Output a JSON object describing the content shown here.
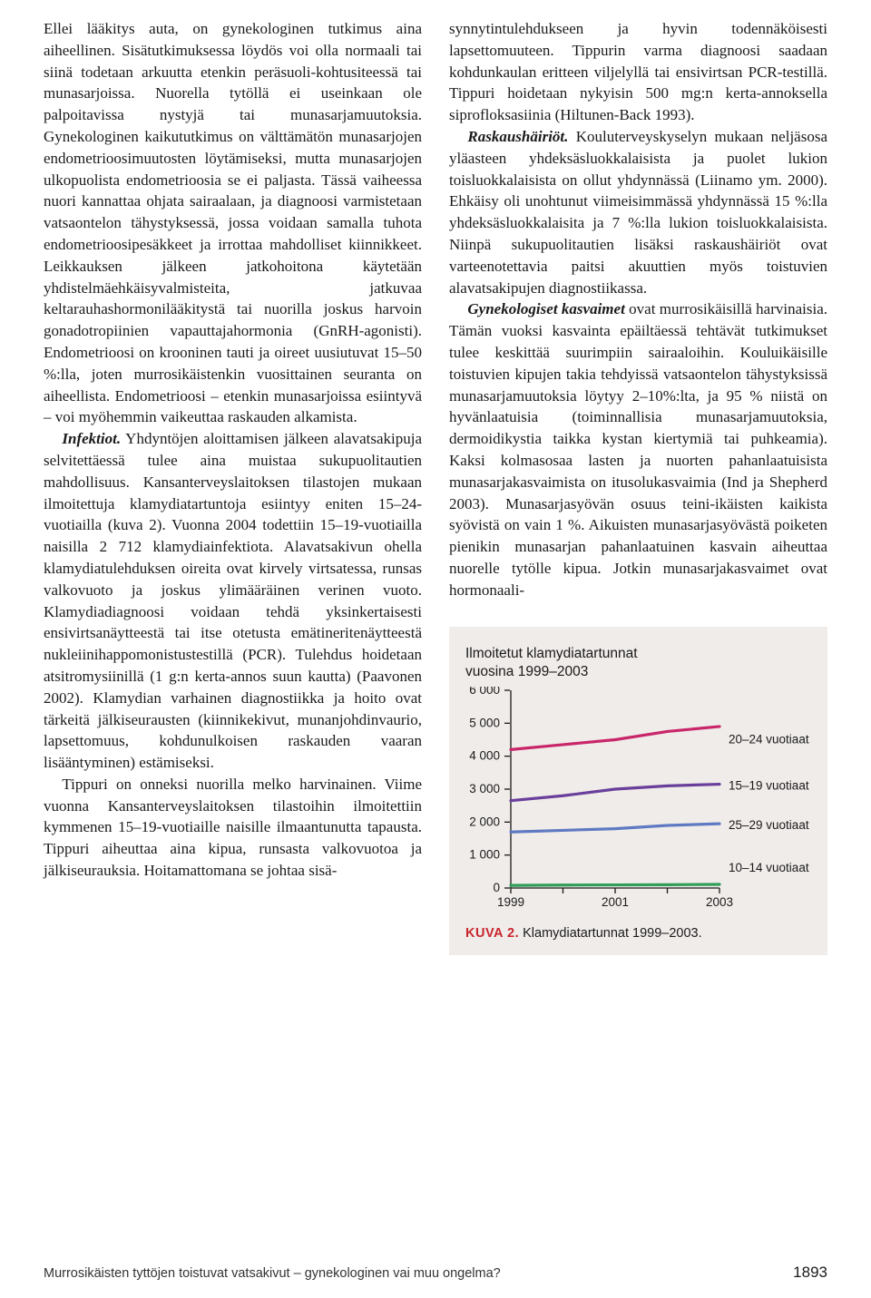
{
  "leftColumn": {
    "p1": "Ellei lääkitys auta, on gynekologinen tutkimus aina aiheellinen. Sisätutkimuksessa löydös voi olla normaali tai siinä todetaan arkuutta etenkin peräsuoli-kohtusiteessä tai munasarjoissa. Nuorella tytöllä ei useinkaan ole palpoitavissa nystyjä tai munasarjamuutoksia. Gynekologinen kaikututkimus on välttämätön munasarjojen endometrioosimuutosten löytämiseksi, mutta munasarjojen ulkopuolista endometrioosia se ei paljasta. Tässä vaiheessa nuori kannattaa ohjata sairaalaan, ja diagnoosi varmistetaan vatsaontelon tähystyksessä, jossa voidaan samalla tuhota endometrioosipesäkkeet ja irrottaa mahdolliset kiinnikkeet. Leikkauksen jälkeen jatkohoitona käytetään yhdistelmäehkäisyvalmisteita, jatkuvaa keltarauhashormonilääkitystä tai nuorilla joskus harvoin gonadotropiinien vapauttajahormonia (GnRH-agonisti). Endometrioosi on krooninen tauti ja oireet uusiutuvat 15–50 %:lla, joten murrosikäistenkin vuosittainen seuranta on aiheellista. Endometrioosi – etenkin munasarjoissa esiintyvä – voi myöhemmin vaikeuttaa raskauden alkamista.",
    "p2_lead": "Infektiot.",
    "p2_body": " Yhdyntöjen aloittamisen jälkeen alavatsakipuja selvitettäessä tulee aina muistaa sukupuolitautien mahdollisuus. Kansanterveyslaitoksen tilastojen mukaan ilmoitettuja klamydiatartuntoja esiintyy eniten 15–24-vuotiailla (kuva 2). Vuonna 2004 todettiin 15–19-vuotiailla naisilla 2 712 klamydiainfektiota. Alavatsakivun ohella klamydiatulehduksen oireita ovat kirvely virtsatessa, runsas valkovuoto ja joskus ylimääräinen verinen vuoto. Klamydiadiagnoosi voidaan tehdä yksinkertaisesti ensivirtsanäytteestä tai itse otetusta emätineritenäytteestä nukleiinihappomonistustestillä (PCR). Tulehdus hoidetaan atsitromysiinillä (1 g:n kerta-annos suun kautta) (Paavonen 2002). Klamydian varhainen diagnostiikka ja hoito ovat tärkeitä jälkiseurausten (kiinnikekivut, munanjohdinvaurio, lapsettomuus, kohdunulkoisen raskauden vaaran lisääntyminen) estämiseksi.",
    "p3": "Tippuri on onneksi nuorilla melko harvinainen. Viime vuonna Kansanterveyslaitoksen tilastoihin ilmoitettiin kymmenen 15–19-vuotiaille naisille ilmaantunutta tapausta. Tippuri aiheuttaa aina kipua, runsasta valkovuotoa ja jälkiseurauksia. Hoitamattomana se johtaa sisä-"
  },
  "rightColumn": {
    "p1": "synnytintulehdukseen ja hyvin todennäköisesti lapsettomuuteen. Tippurin varma diagnoosi saadaan kohdunkaulan eritteen viljelyllä tai ensivirtsan PCR-testillä. Tippuri hoidetaan nykyisin 500 mg:n kerta-annoksella siprofloksasiinia (Hiltunen-Back 1993).",
    "p2_lead": "Raskaushäiriöt.",
    "p2_body": " Kouluterveyskyselyn mukaan neljäsosa yläasteen yhdeksäsluokkalaisista ja puolet lukion toisluokkalaisista on ollut yhdynnässä (Liinamo ym. 2000). Ehkäisy oli unohtunut viimeisimmässä yhdynnässä 15 %:lla yhdeksäsluokkalaisita ja 7 %:lla lukion toisluokkalaisista. Niinpä sukupuolitautien lisäksi raskaushäiriöt ovat varteenotettavia paitsi akuuttien myös toistuvien alavatsakipujen diagnostiikassa.",
    "p3_lead": "Gynekologiset kasvaimet",
    "p3_body": " ovat murrosikäisillä harvinaisia. Tämän vuoksi kasvainta epäiltäessä tehtävät tutkimukset tulee keskittää suurimpiin sairaaloihin. Kouluikäisille toistuvien kipujen takia tehdyissä vatsaontelon tähystyksissä munasarjamuutoksia löytyy 2–10%:lta, ja 95 % niistä on hyvänlaatuisia (toiminnallisia munasarjamuutoksia, dermoidikystia taikka kystan kiertymiä tai puhkeamia). Kaksi kolmasosaa lasten ja nuorten pahanlaatuisista munasarjakasvaimista on itusolukasvaimia (Ind ja Shepherd 2003). Munasarjasyövän osuus teini-ikäisten kaikista syövistä on vain 1 %. Aikuisten munasarjasyövästä poiketen pienikin munasarjan pahanlaatuinen kasvain aiheuttaa nuorelle tytölle kipua. Jotkin munasarjakasvaimet ovat hormonaali-"
  },
  "chart": {
    "type": "line",
    "title_line1": "Ilmoitetut klamydiatartunnat",
    "title_line2": "vuosina 1999–2003",
    "ylim": [
      0,
      6000
    ],
    "ytick_step": 1000,
    "xvalues": [
      1999,
      2000,
      2001,
      2002,
      2003
    ],
    "xtick_labels": [
      "1999",
      "2001",
      "2003"
    ],
    "xtick_showpos": [
      1999,
      2001,
      2003
    ],
    "series": [
      {
        "name": "20–24 vuotiaat",
        "color": "#c9266a",
        "width": 3.2,
        "values": [
          4200,
          4350,
          4500,
          4750,
          4900
        ]
      },
      {
        "name": "15–19 vuotiaat",
        "color": "#6a3f9c",
        "width": 3.2,
        "values": [
          2650,
          2800,
          3000,
          3100,
          3150
        ]
      },
      {
        "name": "25–29 vuotiaat",
        "color": "#5f7ac2",
        "width": 3.2,
        "values": [
          1700,
          1750,
          1800,
          1900,
          1950
        ]
      },
      {
        "name": "10–14 vuotiaat",
        "color": "#2f9e56",
        "width": 3.2,
        "values": [
          80,
          90,
          95,
          100,
          110
        ]
      }
    ],
    "background_color": "#f0ecea",
    "axis_color": "#1a1a1a",
    "label_fontsize": 13.5,
    "title_fontsize": 15.5,
    "caption_prefix": "KUVA 2.",
    "caption_text": " Klamydiatartunnat 1999–2003."
  },
  "footer": {
    "left": "Murrosikäisten tyttöjen toistuvat vatsakivut – gynekologinen vai muu ongelma?",
    "page": "1893"
  }
}
